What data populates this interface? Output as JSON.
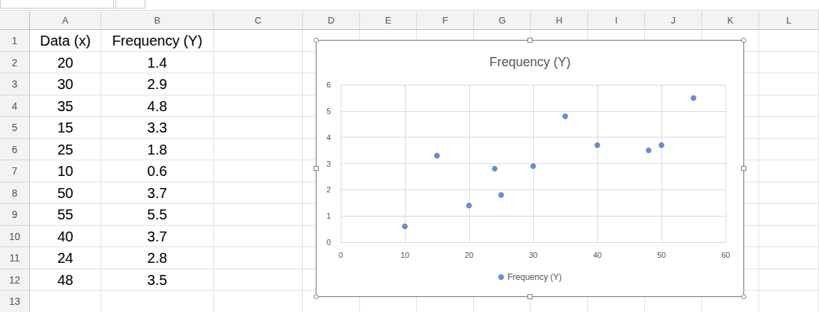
{
  "spreadsheet": {
    "column_letters": [
      "A",
      "B",
      "C",
      "D",
      "E",
      "F",
      "G",
      "H",
      "I",
      "J",
      "K",
      "L"
    ],
    "row_numbers": [
      1,
      2,
      3,
      4,
      5,
      6,
      7,
      8,
      9,
      10,
      11,
      12,
      13
    ],
    "headers": [
      "Data (x)",
      "Frequency (Y)"
    ]
  },
  "chart_data": {
    "type": "scatter",
    "title": "Frequency (Y)",
    "x": [
      20,
      30,
      35,
      15,
      25,
      10,
      50,
      55,
      40,
      24,
      48
    ],
    "series": [
      {
        "name": "Frequency (Y)",
        "color": "#4472c4",
        "marker": "circle",
        "values": [
          1.4,
          2.9,
          4.8,
          3.3,
          1.8,
          0.6,
          3.7,
          5.5,
          3.7,
          2.8,
          3.5
        ]
      }
    ],
    "xlim": [
      0,
      60
    ],
    "xticks": [
      0,
      10,
      20,
      30,
      40,
      50,
      60
    ],
    "ylim": [
      0,
      6
    ],
    "yticks": [
      0,
      1,
      2,
      3,
      4,
      5,
      6
    ],
    "grid": true,
    "legend": "bottom"
  }
}
